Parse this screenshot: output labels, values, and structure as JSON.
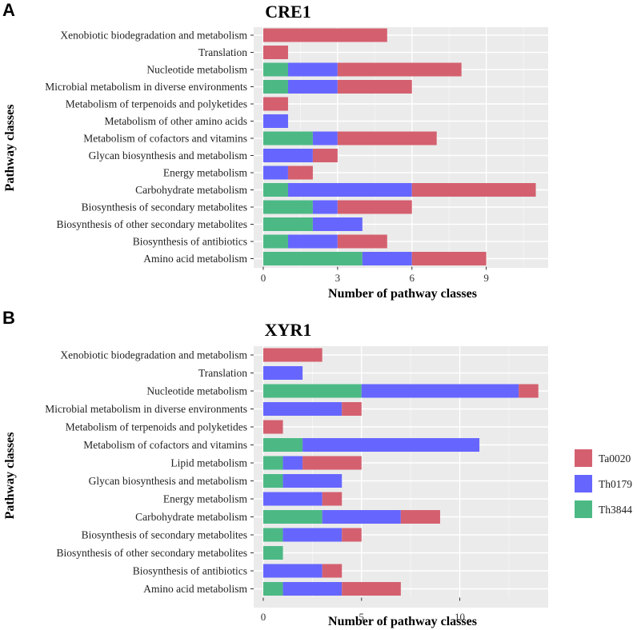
{
  "panels": [
    {
      "letter": "A"
    },
    {
      "letter": "B"
    }
  ],
  "legend": {
    "entries": [
      {
        "name": "Ta0020",
        "color": "#D4606F"
      },
      {
        "name": "Th0179",
        "color": "#6666FF"
      },
      {
        "name": "Th3844",
        "color": "#4CB985"
      }
    ]
  },
  "chart_data": [
    {
      "type": "bar",
      "orientation": "horizontal",
      "stacked": true,
      "title": "CRE1",
      "xlabel": "Number of pathway classes",
      "ylabel": "Pathway classes",
      "xlim": [
        0,
        11.5
      ],
      "xticks": [
        0,
        3,
        6,
        9
      ],
      "categories": [
        "Xenobiotic biodegradation and metabolism",
        "Translation",
        "Nucleotide metabolism",
        "Microbial metabolism in diverse environments",
        "Metabolism of terpenoids and polyketides",
        "Metabolism of other amino acids",
        "Metabolism of cofactors and vitamins",
        "Glycan biosynthesis and metabolism",
        "Energy metabolism",
        "Carbohydrate metabolism",
        "Biosynthesis of secondary metabolites",
        "Biosynthesis of other secondary metabolites",
        "Biosynthesis of antibiotics",
        "Amino acid metabolism"
      ],
      "series": [
        {
          "name": "Th3844",
          "color": "#4CB985",
          "values": [
            0,
            0,
            1,
            1,
            0,
            0,
            2,
            0,
            0,
            1,
            2,
            2,
            1,
            4
          ]
        },
        {
          "name": "Th0179",
          "color": "#6666FF",
          "values": [
            0,
            0,
            2,
            2,
            0,
            1,
            1,
            2,
            1,
            5,
            1,
            2,
            2,
            2
          ]
        },
        {
          "name": "Ta0020",
          "color": "#D4606F",
          "values": [
            5,
            1,
            5,
            3,
            1,
            0,
            4,
            1,
            1,
            5,
            3,
            0,
            2,
            3
          ]
        }
      ]
    },
    {
      "type": "bar",
      "orientation": "horizontal",
      "stacked": true,
      "title": "XYR1",
      "xlabel": "Number of pathway classes",
      "ylabel": "Pathway classes",
      "xlim": [
        0,
        14.5
      ],
      "xticks": [
        0,
        5,
        10
      ],
      "categories": [
        "Xenobiotic biodegradation and metabolism",
        "Translation",
        "Nucleotide metabolism",
        "Microbial metabolism in diverse environments",
        "Metabolism of terpenoids and polyketides",
        "Metabolism of cofactors and vitamins",
        "Lipid metabolism",
        "Glycan biosynthesis and metabolism",
        "Energy metabolism",
        "Carbohydrate metabolism",
        "Biosynthesis of secondary metabolites",
        "Biosynthesis of other secondary metabolites",
        "Biosynthesis of antibiotics",
        "Amino acid metabolism"
      ],
      "series": [
        {
          "name": "Th3844",
          "color": "#4CB985",
          "values": [
            0,
            0,
            5,
            0,
            0,
            2,
            1,
            1,
            0,
            3,
            1,
            1,
            0,
            1
          ]
        },
        {
          "name": "Th0179",
          "color": "#6666FF",
          "values": [
            0,
            2,
            8,
            4,
            0,
            9,
            1,
            3,
            3,
            4,
            3,
            0,
            3,
            3
          ]
        },
        {
          "name": "Ta0020",
          "color": "#D4606F",
          "values": [
            3,
            0,
            1,
            1,
            1,
            0,
            3,
            0,
            1,
            2,
            1,
            0,
            1,
            3
          ]
        }
      ]
    }
  ]
}
